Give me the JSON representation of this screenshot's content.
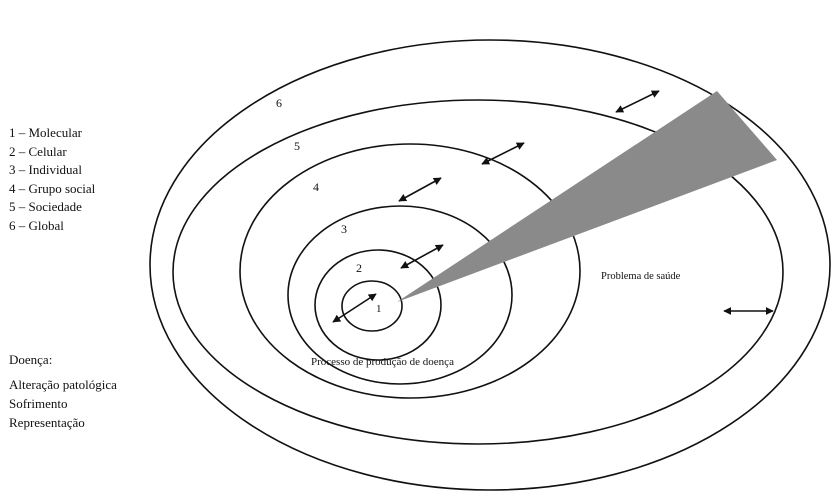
{
  "levels": [
    {
      "number": "1",
      "label": "1 – Molecular"
    },
    {
      "number": "2",
      "label": "2 – Celular"
    },
    {
      "number": "3",
      "label": "3 – Individual"
    },
    {
      "number": "4",
      "label": "4 – Grupo social"
    },
    {
      "number": "5",
      "label": "5 – Sociedade"
    },
    {
      "number": "6",
      "label": "6 – Global"
    }
  ],
  "disease": {
    "title": "Doença:",
    "items": [
      "Alteração patológica",
      "Sofrimento",
      "Representação"
    ]
  },
  "annotations": {
    "health_problem": "Problema de saúde",
    "disease_process": "Processo de produção de doença"
  },
  "colors": {
    "stroke": "#111111",
    "wedge": "#8a8a8a",
    "background": "#ffffff"
  }
}
